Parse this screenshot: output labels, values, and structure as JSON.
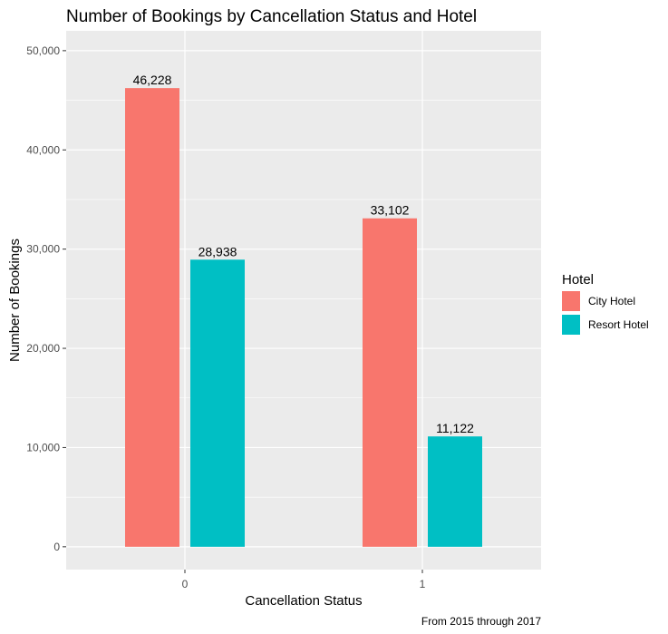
{
  "chart_data": {
    "type": "bar",
    "title": "Number of Bookings by Cancellation Status and Hotel",
    "xlabel": "Cancellation Status",
    "ylabel": "Number of Bookings",
    "caption": "From 2015 through 2017",
    "categories": [
      "0",
      "1"
    ],
    "series": [
      {
        "name": "City Hotel",
        "color": "#F8766D",
        "values": [
          46228,
          33102
        ],
        "labels": [
          "46,228",
          "33,102"
        ]
      },
      {
        "name": "Resort Hotel",
        "color": "#00BFC4",
        "values": [
          28938,
          11122
        ],
        "labels": [
          "28,938",
          "11,122"
        ]
      }
    ],
    "ylim": [
      -2300,
      52000
    ],
    "yticks": [
      0,
      10000,
      20000,
      30000,
      40000,
      50000
    ],
    "ytick_labels": [
      "0",
      "10,000",
      "20,000",
      "30,000",
      "40,000",
      "50,000"
    ],
    "legend": {
      "title": "Hotel",
      "position": "right"
    },
    "grid": true,
    "panel_background": "#EBEBEB"
  }
}
